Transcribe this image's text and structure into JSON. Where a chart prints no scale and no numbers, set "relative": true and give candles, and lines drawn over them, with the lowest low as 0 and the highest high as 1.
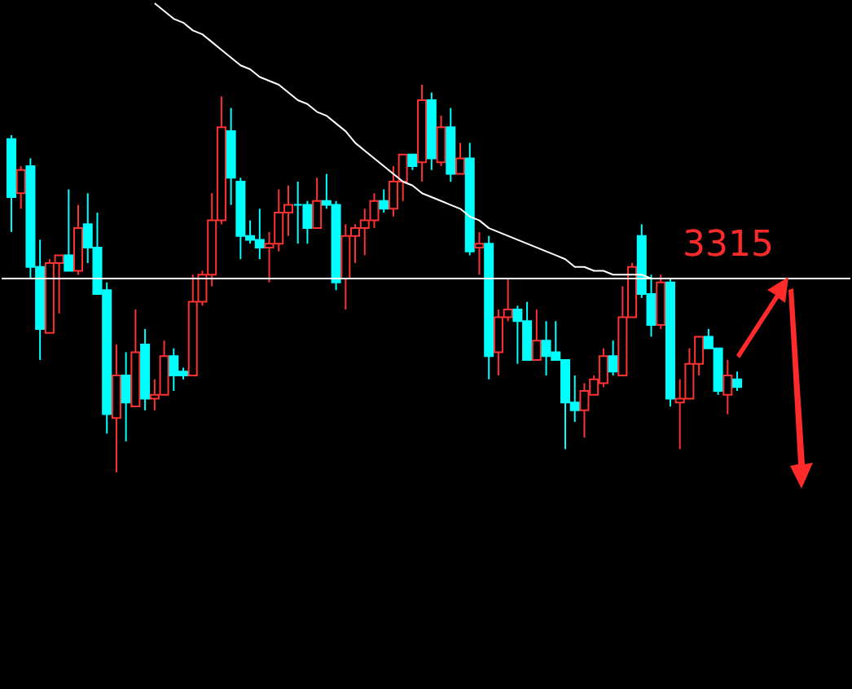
{
  "chart_data": {
    "type": "candlestick",
    "relative": true,
    "categories": [
      null,
      null,
      null,
      null,
      null,
      null,
      null,
      null,
      null,
      null,
      null,
      null,
      null,
      null,
      null,
      null,
      null,
      null,
      null,
      null,
      null,
      null,
      null,
      null,
      null,
      null,
      null,
      null,
      null,
      null,
      null,
      null,
      null,
      null,
      null,
      null,
      null,
      null,
      null,
      null,
      null,
      null,
      null,
      null,
      null,
      null,
      null,
      null,
      null,
      null,
      null,
      null,
      null,
      null,
      null,
      null,
      null,
      null,
      null,
      null,
      null,
      null,
      null,
      null,
      null,
      null,
      null,
      null,
      null,
      null,
      null,
      null,
      null,
      null,
      null,
      null,
      null
    ],
    "ohlc": [
      [
        0.86,
        0.87,
        0.62,
        0.71
      ],
      [
        0.72,
        0.79,
        0.68,
        0.78
      ],
      [
        0.79,
        0.81,
        0.5,
        0.53
      ],
      [
        0.53,
        0.6,
        0.29,
        0.37
      ],
      [
        0.36,
        0.55,
        0.36,
        0.54
      ],
      [
        0.54,
        0.56,
        0.41,
        0.56
      ],
      [
        0.56,
        0.73,
        0.52,
        0.52
      ],
      [
        0.52,
        0.69,
        0.51,
        0.63
      ],
      [
        0.64,
        0.72,
        0.54,
        0.58
      ],
      [
        0.58,
        0.67,
        0.46,
        0.46
      ],
      [
        0.47,
        0.49,
        0.1,
        0.15
      ],
      [
        0.14,
        0.33,
        0,
        0.25
      ],
      [
        0.25,
        0.31,
        0.08,
        0.18
      ],
      [
        0.17,
        0.42,
        0.17,
        0.31
      ],
      [
        0.33,
        0.37,
        0.16,
        0.19
      ],
      [
        0.19,
        0.24,
        0.16,
        0.2
      ],
      [
        0.2,
        0.34,
        0.2,
        0.3
      ],
      [
        0.3,
        0.32,
        0.21,
        0.25
      ],
      [
        0.26,
        0.27,
        0.24,
        0.25
      ],
      [
        0.25,
        0.51,
        0.25,
        0.44
      ],
      [
        0.44,
        0.52,
        0.43,
        0.51
      ],
      [
        0.51,
        0.72,
        0.48,
        0.65
      ],
      [
        0.65,
        0.97,
        0.64,
        0.89
      ],
      [
        0.88,
        0.94,
        0.69,
        0.76
      ],
      [
        0.75,
        0.76,
        0.55,
        0.61
      ],
      [
        0.61,
        0.65,
        0.59,
        0.6
      ],
      [
        0.6,
        0.68,
        0.55,
        0.58
      ],
      [
        0.58,
        0.62,
        0.49,
        0.59
      ],
      [
        0.59,
        0.73,
        0.57,
        0.67
      ],
      [
        0.67,
        0.74,
        0.61,
        0.69
      ],
      [
        0.69,
        0.75,
        0.59,
        0.69
      ],
      [
        0.69,
        0.7,
        0.59,
        0.63
      ],
      [
        0.63,
        0.76,
        0.63,
        0.7
      ],
      [
        0.7,
        0.77,
        0.68,
        0.69
      ],
      [
        0.69,
        0.7,
        0.47,
        0.49
      ],
      [
        0.5,
        0.64,
        0.42,
        0.61
      ],
      [
        0.61,
        0.64,
        0.54,
        0.63
      ],
      [
        0.63,
        0.68,
        0.56,
        0.65
      ],
      [
        0.65,
        0.72,
        0.63,
        0.7
      ],
      [
        0.7,
        0.73,
        0.67,
        0.68
      ],
      [
        0.68,
        0.79,
        0.66,
        0.75
      ],
      [
        0.75,
        0.82,
        0.7,
        0.82
      ],
      [
        0.82,
        0.82,
        0.78,
        0.79
      ],
      [
        0.8,
        1,
        0.75,
        0.96
      ],
      [
        0.96,
        0.98,
        0.78,
        0.81
      ],
      [
        0.8,
        0.92,
        0.79,
        0.89
      ],
      [
        0.89,
        0.94,
        0.75,
        0.77
      ],
      [
        0.77,
        0.85,
        0.77,
        0.81
      ],
      [
        0.81,
        0.85,
        0.56,
        0.57
      ],
      [
        0.58,
        0.62,
        0.51,
        0.59
      ],
      [
        0.59,
        0.61,
        0.24,
        0.3
      ],
      [
        0.31,
        0.42,
        0.25,
        0.4
      ],
      [
        0.4,
        0.5,
        0.39,
        0.42
      ],
      [
        0.42,
        0.43,
        0.28,
        0.39
      ],
      [
        0.39,
        0.44,
        0.29,
        0.29
      ],
      [
        0.29,
        0.42,
        0.29,
        0.34
      ],
      [
        0.34,
        0.39,
        0.25,
        0.3
      ],
      [
        0.31,
        0.39,
        0.29,
        0.29
      ],
      [
        0.29,
        0.29,
        0.06,
        0.18
      ],
      [
        0.18,
        0.25,
        0.13,
        0.16
      ],
      [
        0.16,
        0.23,
        0.09,
        0.21
      ],
      [
        0.2,
        0.25,
        0.2,
        0.24
      ],
      [
        0.23,
        0.32,
        0.22,
        0.3
      ],
      [
        0.3,
        0.34,
        0.25,
        0.26
      ],
      [
        0.25,
        0.48,
        0.25,
        0.4
      ],
      [
        0.4,
        0.54,
        0.4,
        0.53
      ],
      [
        0.61,
        0.64,
        0.45,
        0.46
      ],
      [
        0.46,
        0.51,
        0.35,
        0.38
      ],
      [
        0.38,
        0.51,
        0.37,
        0.49
      ],
      [
        0.49,
        0.5,
        0.17,
        0.19
      ],
      [
        0.18,
        0.24,
        0.06,
        0.19
      ],
      [
        0.19,
        0.32,
        0.19,
        0.28
      ],
      [
        0.28,
        0.35,
        0.25,
        0.35
      ],
      [
        0.35,
        0.37,
        0.32,
        0.32
      ],
      [
        0.32,
        0.32,
        0.2,
        0.21
      ],
      [
        0.2,
        0.29,
        0.15,
        0.25
      ],
      [
        0.24,
        0.26,
        0.21,
        0.22
      ]
    ],
    "colors": [
      "#00ffff",
      "#ff3232",
      "#00ffff",
      "#00ffff",
      "#ff3232",
      "#ff3232",
      "#00ffff",
      "#ff3232",
      "#00ffff",
      "#00ffff",
      "#00ffff",
      "#ff3232",
      "#00ffff",
      "#ff3232",
      "#00ffff",
      "#ff3232",
      "#ff3232",
      "#00ffff",
      "#00ffff",
      "#ff3232",
      "#ff3232",
      "#ff3232",
      "#ff3232",
      "#00ffff",
      "#00ffff",
      "#00ffff",
      "#00ffff",
      "#ff3232",
      "#ff3232",
      "#ff3232",
      "#00ffff",
      "#00ffff",
      "#ff3232",
      "#00ffff",
      "#00ffff",
      "#ff3232",
      "#ff3232",
      "#ff3232",
      "#ff3232",
      "#00ffff",
      "#ff3232",
      "#ff3232",
      "#00ffff",
      "#ff3232",
      "#00ffff",
      "#ff3232",
      "#00ffff",
      "#ff3232",
      "#00ffff",
      "#ff3232",
      "#00ffff",
      "#ff3232",
      "#ff3232",
      "#00ffff",
      "#00ffff",
      "#ff3232",
      "#00ffff",
      "#00ffff",
      "#00ffff",
      "#00ffff",
      "#ff3232",
      "#ff3232",
      "#ff3232",
      "#00ffff",
      "#ff3232",
      "#ff3232",
      "#00ffff",
      "#00ffff",
      "#ff3232",
      "#00ffff",
      "#ff3232",
      "#ff3232",
      "#ff3232",
      "#00ffff",
      "#00ffff",
      "#ff3232",
      "#00ffff"
    ],
    "series": [
      {
        "type": "line",
        "color": "#ffffff",
        "values": [
          null,
          null,
          null,
          null,
          null,
          null,
          null,
          null,
          null,
          null,
          null,
          null,
          null,
          null,
          null,
          1.21,
          1.19,
          1.17,
          1.16,
          1.14,
          1.13,
          1.11,
          1.09,
          1.07,
          1.05,
          1.04,
          1.02,
          1.01,
          1.0,
          0.98,
          0.96,
          0.95,
          0.93,
          0.92,
          0.9,
          0.88,
          0.85,
          0.83,
          0.81,
          0.79,
          0.77,
          0.75,
          0.74,
          0.72,
          0.71,
          0.7,
          0.69,
          0.68,
          0.66,
          0.65,
          0.63,
          0.62,
          0.61,
          0.6,
          0.59,
          0.58,
          0.57,
          0.56,
          0.55,
          0.53,
          0.53,
          0.52,
          0.52,
          0.51,
          0.51,
          0.51,
          0.51,
          0.5,
          0.5,
          0.5,
          0.5,
          0.5,
          null,
          null,
          null,
          null,
          null
        ]
      }
    ],
    "ref_lines": [
      {
        "axis": "y",
        "value": 0.5,
        "color": "#ffffff"
      }
    ],
    "annotations": [
      "3315"
    ]
  }
}
